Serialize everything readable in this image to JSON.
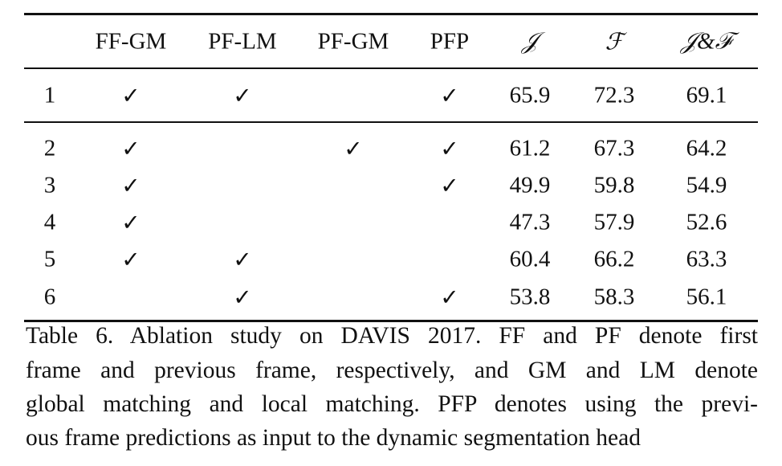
{
  "table": {
    "header": [
      "FF-GM",
      "PF-LM",
      "PF-GM",
      "PFP",
      "𝒥",
      "ℱ",
      "𝒥&ℱ"
    ],
    "rows": [
      [
        1,
        "✓",
        "✓",
        null,
        "✓",
        65.9,
        72.3,
        69.1
      ],
      [
        2,
        "✓",
        null,
        "✓",
        "✓",
        61.2,
        67.3,
        64.2
      ],
      [
        3,
        "✓",
        null,
        null,
        "✓",
        49.9,
        59.8,
        54.9
      ],
      [
        4,
        "✓",
        null,
        null,
        null,
        47.3,
        57.9,
        52.6
      ],
      [
        5,
        "✓",
        "✓",
        null,
        null,
        60.4,
        66.2,
        63.3
      ],
      [
        6,
        null,
        "✓",
        null,
        "✓",
        53.8,
        58.3,
        56.1
      ]
    ]
  },
  "caption": {
    "lines": [
      "Table 6. Ablation study on DAVIS 2017. FF and PF denote first",
      "frame and previous frame, respectively, and GM and LM denote",
      "global matching and local matching. PFP denotes using the previ-",
      "ous frame predictions as input to the dynamic segmentation head"
    ]
  }
}
